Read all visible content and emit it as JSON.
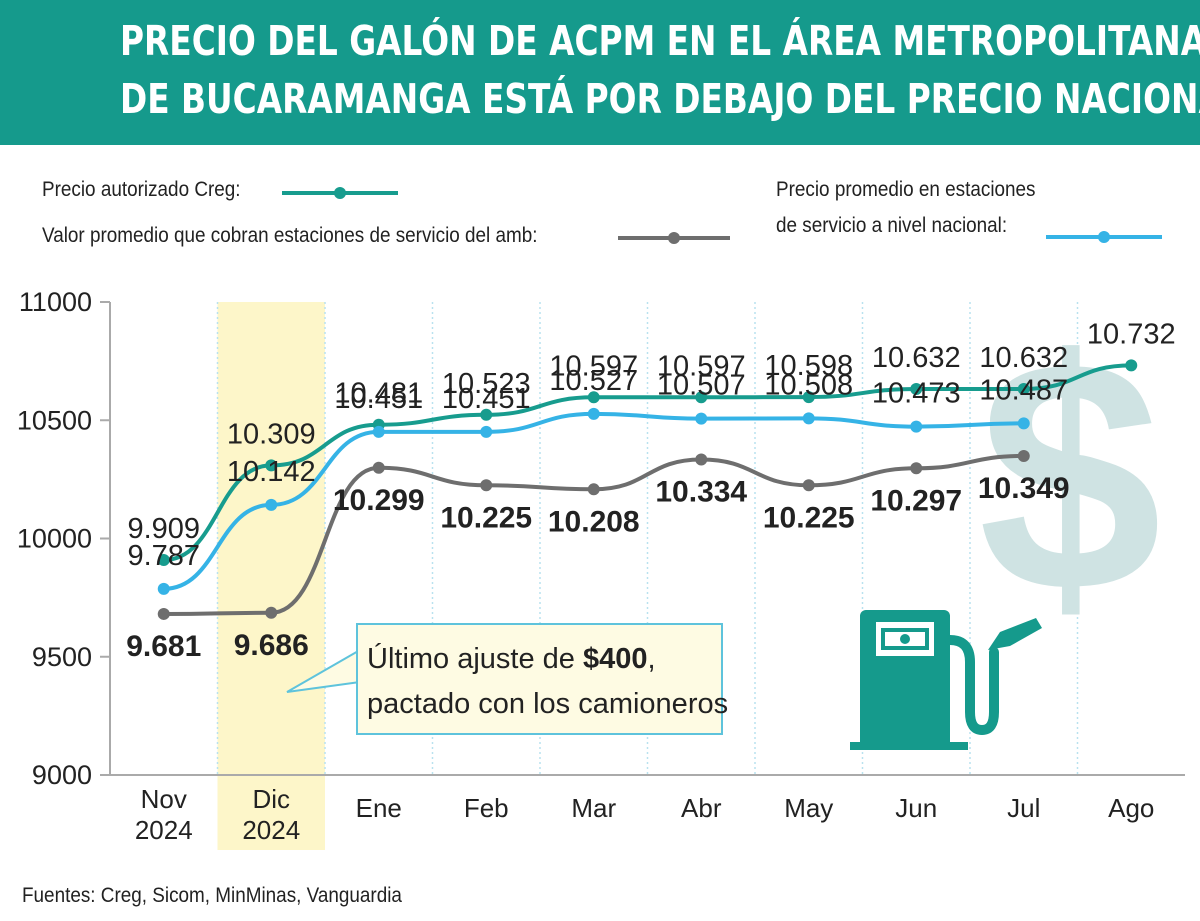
{
  "header": {
    "title_line1": "PRECIO DEL GALÓN DE ACPM EN EL ÁREA METROPOLITANA",
    "title_line2": "DE BUCARAMANGA ESTÁ POR DEBAJO DEL PRECIO NACIONAL"
  },
  "legend": {
    "creg": "Precio autorizado Creg:",
    "amb": "Valor promedio que  cobran estaciones de servicio del amb:",
    "nacional_line1": "Precio promedio en estaciones",
    "nacional_line2": "de servicio a nivel nacional:"
  },
  "colors": {
    "banner": "#159a8c",
    "creg": "#179c8e",
    "amb": "#6e6e6e",
    "nacional": "#35b3e6",
    "highlight": "#fdf6c9",
    "callout_bg": "#fefbe3",
    "callout_border": "#5ec3dc"
  },
  "chart_data": {
    "type": "line",
    "categories": [
      "Nov\n2024",
      "Dic\n2024",
      "Ene",
      "Feb",
      "Mar",
      "Abr",
      "May",
      "Jun",
      "Jul",
      "Ago"
    ],
    "yticks": [
      "11000",
      "10500",
      "10000",
      "9500",
      "9000"
    ],
    "ylim": [
      9000,
      11000
    ],
    "highlighted_category": "Dic\n2024",
    "series": [
      {
        "key": "creg",
        "values": [
          9909,
          10309,
          10481,
          10523,
          10597,
          10597,
          10598,
          10632,
          10632,
          10732
        ],
        "labels": [
          "9.909",
          "10.309",
          "10.481",
          "10.523",
          "10.597",
          "10.597",
          "10.598",
          "10.632",
          "10.632",
          "10.732"
        ]
      },
      {
        "key": "nacional",
        "values": [
          9787,
          10142,
          10451,
          10451,
          10527,
          10507,
          10508,
          10473,
          10487,
          null
        ],
        "labels": [
          "9.787",
          "10.142",
          "10.451",
          "10.451",
          "10.527",
          "10.507",
          "10.508",
          "10.473",
          "10.487",
          ""
        ]
      },
      {
        "key": "amb",
        "values": [
          9681,
          9686,
          10299,
          10225,
          10208,
          10334,
          10225,
          10297,
          10349,
          null
        ],
        "labels": [
          "9.681",
          "9.686",
          "10.299",
          "10.225",
          "10.208",
          "10.334",
          "10.225",
          "10.297",
          "10.349",
          ""
        ]
      }
    ],
    "annotation": {
      "line1_prefix": "Último ajuste de ",
      "line1_bold": "$400",
      "line1_suffix": ",",
      "line2": "pactado con los camioneros"
    }
  },
  "footer": {
    "sources": "Fuentes: Creg, Sicom, MinMinas, Vanguardia"
  }
}
